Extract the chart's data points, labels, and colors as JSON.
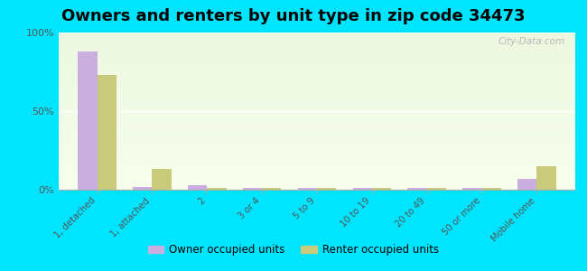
{
  "title": "Owners and renters by unit type in zip code 34473",
  "categories": [
    "1, detached",
    "1, attached",
    "2",
    "3 or 4",
    "5 to 9",
    "10 to 19",
    "20 to 49",
    "50 or more",
    "Mobile home"
  ],
  "owner_values": [
    88,
    2,
    3,
    1,
    1,
    1,
    1,
    1,
    7
  ],
  "renter_values": [
    73,
    13,
    1,
    1,
    1,
    1,
    1,
    1,
    15
  ],
  "owner_color": "#c9aee0",
  "renter_color": "#c8cc7a",
  "bg_color": "#00e5ff",
  "ylim": [
    0,
    100
  ],
  "yticks": [
    0,
    50,
    100
  ],
  "ytick_labels": [
    "0%",
    "50%",
    "100%"
  ],
  "legend_owner": "Owner occupied units",
  "legend_renter": "Renter occupied units",
  "watermark": "City-Data.com",
  "bar_width": 0.35,
  "title_fontsize": 13
}
